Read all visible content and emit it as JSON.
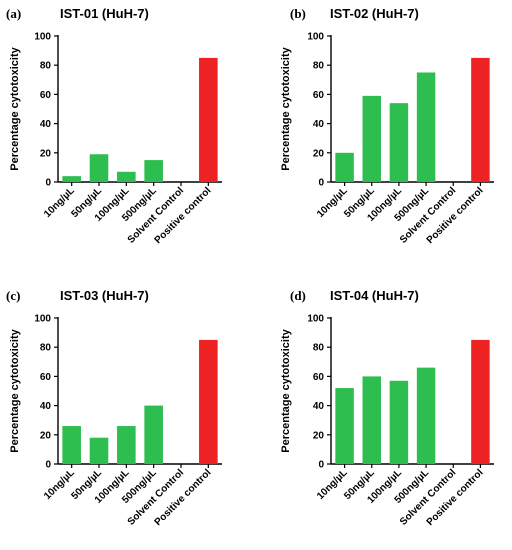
{
  "chart_data": [
    {
      "type": "bar",
      "panel_label": "(a)",
      "title": "IST-01 (HuH-7)",
      "ylabel": "Percentage cytotoxicity",
      "xlabel": "",
      "ylim": [
        0,
        100
      ],
      "yticks": [
        0,
        20,
        40,
        60,
        80,
        100
      ],
      "grid": false,
      "categories": [
        "10ng/µL",
        "50ng/µL",
        "100ng/µL",
        "500ng/µL",
        "Solvent Control",
        "Positive control"
      ],
      "values": [
        4,
        19,
        7,
        15,
        0,
        85
      ],
      "colors": [
        "#2ebd4f",
        "#2ebd4f",
        "#2ebd4f",
        "#2ebd4f",
        "#2ebd4f",
        "#ee2222"
      ]
    },
    {
      "type": "bar",
      "panel_label": "(b)",
      "title": "IST-02 (HuH-7)",
      "ylabel": "Percentage cytotoxicity",
      "xlabel": "",
      "ylim": [
        0,
        100
      ],
      "yticks": [
        0,
        20,
        40,
        60,
        80,
        100
      ],
      "grid": false,
      "categories": [
        "10ng/µL",
        "50ng/µL",
        "100ng/µL",
        "500ng/µL",
        "Solvent Control",
        "Positive control"
      ],
      "values": [
        20,
        59,
        54,
        75,
        0,
        85
      ],
      "colors": [
        "#2ebd4f",
        "#2ebd4f",
        "#2ebd4f",
        "#2ebd4f",
        "#2ebd4f",
        "#ee2222"
      ]
    },
    {
      "type": "bar",
      "panel_label": "(c)",
      "title": "IST-03 (HuH-7)",
      "ylabel": "Percentage cytotoxicity",
      "xlabel": "",
      "ylim": [
        0,
        100
      ],
      "yticks": [
        0,
        20,
        40,
        60,
        80,
        100
      ],
      "grid": false,
      "categories": [
        "10ng/µL",
        "50ng/µL",
        "100ng/µL",
        "500ng/µL",
        "Solvent Control",
        "Positive control"
      ],
      "values": [
        26,
        18,
        26,
        40,
        0,
        85
      ],
      "colors": [
        "#2ebd4f",
        "#2ebd4f",
        "#2ebd4f",
        "#2ebd4f",
        "#2ebd4f",
        "#ee2222"
      ]
    },
    {
      "type": "bar",
      "panel_label": "(d)",
      "title": "IST-04 (HuH-7)",
      "ylabel": "Percentage cytotoxicity",
      "xlabel": "",
      "ylim": [
        0,
        100
      ],
      "yticks": [
        0,
        20,
        40,
        60,
        80,
        100
      ],
      "grid": false,
      "categories": [
        "10ng/µL",
        "50ng/µL",
        "100ng/µL",
        "500ng/µL",
        "Solvent Control",
        "Positive control"
      ],
      "values": [
        52,
        60,
        57,
        66,
        0,
        85
      ],
      "colors": [
        "#2ebd4f",
        "#2ebd4f",
        "#2ebd4f",
        "#2ebd4f",
        "#2ebd4f",
        "#ee2222"
      ]
    }
  ]
}
